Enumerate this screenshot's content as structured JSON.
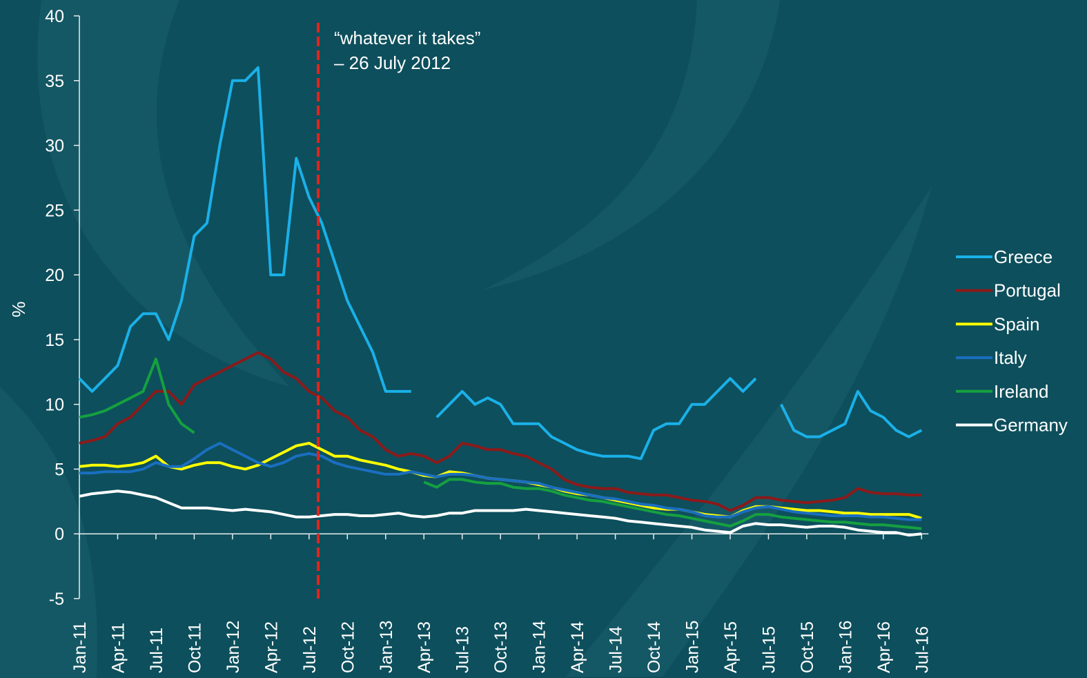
{
  "chart_data": {
    "type": "line",
    "ylabel": "%",
    "annotation": [
      "“whatever  it takes”",
      "– 26 July  2012"
    ],
    "annotation_color": "#e8211c",
    "ylim": [
      -5,
      40
    ],
    "yticks": [
      -5,
      0,
      5,
      10,
      15,
      20,
      25,
      30,
      35,
      40
    ],
    "categories": [
      "Jan-11",
      null,
      null,
      "Apr-11",
      null,
      null,
      "Jul-11",
      null,
      null,
      "Oct-11",
      null,
      null,
      "Jan-12",
      null,
      null,
      "Apr-12",
      null,
      null,
      "Jul-12",
      null,
      null,
      "Oct-12",
      null,
      null,
      "Jan-13",
      null,
      null,
      "Apr-13",
      null,
      null,
      "Jul-13",
      null,
      null,
      "Oct-13",
      null,
      null,
      "Jan-14",
      null,
      null,
      "Apr-14",
      null,
      null,
      "Jul-14",
      null,
      null,
      "Oct-14",
      null,
      null,
      "Jan-15",
      null,
      null,
      "Apr-15",
      null,
      null,
      "Jul-15",
      null,
      null,
      "Oct-15",
      null,
      null,
      "Jan-16",
      null,
      null,
      "Apr-16",
      null,
      null,
      "Jul-16"
    ],
    "series": [
      {
        "name": "Greece",
        "color": "#1ab0e8",
        "values": [
          12,
          11,
          12,
          13,
          16,
          17,
          17,
          15,
          18,
          23,
          24,
          30,
          35,
          35,
          36,
          20,
          20,
          29,
          26,
          24,
          21,
          18,
          16,
          14,
          11,
          11,
          11,
          null,
          9,
          10,
          11,
          10,
          10.5,
          10,
          8.5,
          8.5,
          8.5,
          7.5,
          7,
          6.5,
          6.2,
          6,
          6,
          6,
          5.8,
          8,
          8.5,
          8.5,
          10,
          10,
          11,
          12,
          11,
          12,
          null,
          10,
          8,
          7.5,
          7.5,
          8,
          8.5,
          11,
          9.5,
          9,
          8,
          7.5,
          8
        ]
      },
      {
        "name": "Portugal",
        "color": "#8b1a1a",
        "values": [
          7,
          7.2,
          7.5,
          8.5,
          9,
          10,
          11,
          11,
          10,
          11.5,
          12,
          12.5,
          13,
          13.5,
          14,
          13.5,
          12.5,
          12,
          11,
          10.5,
          9.5,
          9,
          8,
          7.5,
          6.5,
          6,
          6.2,
          6,
          5.5,
          6,
          7,
          6.8,
          6.5,
          6.5,
          6.2,
          6,
          5.5,
          5,
          4.2,
          3.8,
          3.6,
          3.5,
          3.5,
          3.2,
          3.1,
          3,
          3,
          2.8,
          2.6,
          2.5,
          2.3,
          1.8,
          2.2,
          2.8,
          2.8,
          2.6,
          2.5,
          2.4,
          2.5,
          2.6,
          2.8,
          3.5,
          3.2,
          3.1,
          3.1,
          3,
          3
        ]
      },
      {
        "name": "Spain",
        "color": "#ffff00",
        "values": [
          5.2,
          5.3,
          5.3,
          5.2,
          5.3,
          5.5,
          6,
          5.2,
          5,
          5.3,
          5.5,
          5.5,
          5.2,
          5,
          5.3,
          5.8,
          6.3,
          6.8,
          7,
          6.5,
          6,
          6,
          5.7,
          5.5,
          5.3,
          5,
          4.8,
          4.5,
          4.4,
          4.8,
          4.7,
          4.5,
          4.3,
          4.2,
          4.1,
          4,
          3.8,
          3.6,
          3.3,
          3.1,
          3,
          2.8,
          2.6,
          2.4,
          2.2,
          2,
          1.9,
          1.9,
          1.7,
          1.5,
          1.4,
          1.3,
          1.8,
          2.1,
          2.1,
          2,
          1.9,
          1.8,
          1.8,
          1.7,
          1.6,
          1.6,
          1.5,
          1.5,
          1.5,
          1.5,
          1.2
        ]
      },
      {
        "name": "Italy",
        "color": "#1a6fc0",
        "values": [
          4.7,
          4.7,
          4.8,
          4.8,
          4.8,
          5,
          5.5,
          5.2,
          5.2,
          5.8,
          6.5,
          7,
          6.5,
          6,
          5.5,
          5.2,
          5.5,
          6,
          6.2,
          6,
          5.5,
          5.2,
          5,
          4.8,
          4.6,
          4.6,
          4.8,
          4.6,
          4.4,
          4.6,
          4.6,
          4.5,
          4.3,
          4.2,
          4.1,
          4,
          3.9,
          3.6,
          3.4,
          3.2,
          3,
          2.8,
          2.7,
          2.5,
          2.3,
          2.2,
          2,
          1.9,
          1.7,
          1.4,
          1.3,
          1.3,
          1.7,
          2,
          2.1,
          1.9,
          1.7,
          1.6,
          1.5,
          1.4,
          1.4,
          1.4,
          1.3,
          1.3,
          1.2,
          1.1,
          1.1
        ]
      },
      {
        "name": "Ireland",
        "color": "#15a040",
        "values": [
          9,
          9.2,
          9.5,
          10,
          10.5,
          11,
          13.5,
          10,
          8.5,
          7.8,
          null,
          null,
          null,
          null,
          null,
          null,
          null,
          null,
          null,
          null,
          null,
          null,
          null,
          null,
          null,
          null,
          null,
          4,
          3.6,
          4.2,
          4.2,
          4,
          3.9,
          3.9,
          3.6,
          3.5,
          3.5,
          3.3,
          3,
          2.8,
          2.6,
          2.5,
          2.3,
          2.1,
          1.9,
          1.7,
          1.5,
          1.4,
          1.2,
          1,
          0.8,
          0.6,
          1,
          1.5,
          1.5,
          1.3,
          1.2,
          1.1,
          1,
          0.9,
          0.9,
          0.8,
          0.7,
          0.7,
          0.6,
          0.5,
          0.4
        ]
      },
      {
        "name": "Germany",
        "color": "#ffffff",
        "values": [
          2.9,
          3.1,
          3.2,
          3.3,
          3.2,
          3,
          2.8,
          2.4,
          2,
          2,
          2,
          1.9,
          1.8,
          1.9,
          1.8,
          1.7,
          1.5,
          1.3,
          1.3,
          1.4,
          1.5,
          1.5,
          1.4,
          1.4,
          1.5,
          1.6,
          1.4,
          1.3,
          1.4,
          1.6,
          1.6,
          1.8,
          1.8,
          1.8,
          1.8,
          1.9,
          1.8,
          1.7,
          1.6,
          1.5,
          1.4,
          1.3,
          1.2,
          1,
          0.9,
          0.8,
          0.7,
          0.6,
          0.5,
          0.3,
          0.2,
          0.1,
          0.6,
          0.8,
          0.7,
          0.7,
          0.6,
          0.5,
          0.6,
          0.6,
          0.5,
          0.3,
          0.2,
          0.1,
          0.1,
          -0.1,
          0
        ]
      }
    ]
  }
}
